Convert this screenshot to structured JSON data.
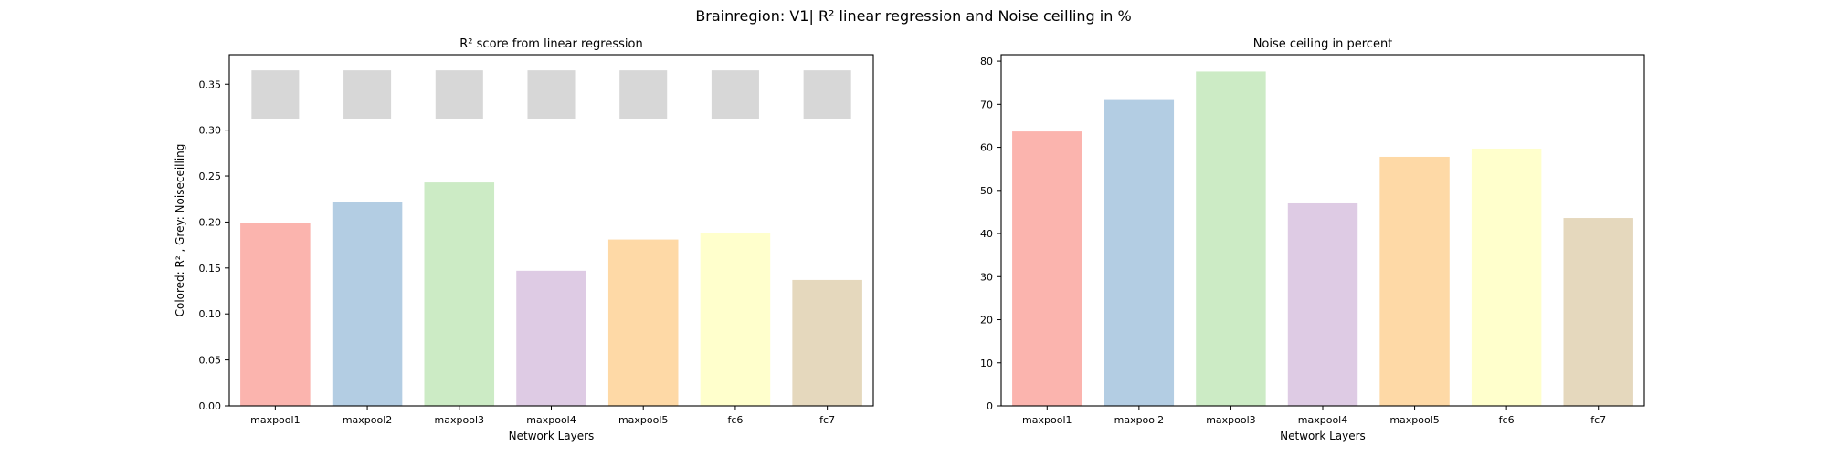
{
  "figure": {
    "title": "Brainregion: V1| R² linear regression and Noise ceilling in %"
  },
  "colors": {
    "bars": [
      "#fbb4ae",
      "#b3cde3",
      "#ccebc5",
      "#decbe4",
      "#fed9a6",
      "#ffffcc",
      "#e5d8bd"
    ],
    "ceiling": "#d7d7d7"
  },
  "chart_data": [
    {
      "type": "bar",
      "title": "R² score from linear regression",
      "xlabel": "Network Layers",
      "ylabel": "Colored: R² , Grey: Noiseceilling",
      "categories": [
        "maxpool1",
        "maxpool2",
        "maxpool3",
        "maxpool4",
        "maxpool5",
        "fc6",
        "fc7"
      ],
      "series": [
        {
          "values": [
            0.199,
            0.222,
            0.243,
            0.147,
            0.181,
            0.188,
            0.137
          ]
        },
        {
          "values": [
            0.365,
            0.365,
            0.365,
            0.365,
            0.365,
            0.365,
            0.365
          ],
          "bottom": 0.312
        }
      ],
      "ylim": [
        0,
        0.382
      ],
      "yticks": [
        0.0,
        0.05,
        0.1,
        0.15,
        0.2,
        0.25,
        0.3,
        0.35
      ],
      "ytick_labels": [
        "0.00",
        "0.05",
        "0.10",
        "0.15",
        "0.20",
        "0.25",
        "0.30",
        "0.35"
      ],
      "grid": false,
      "legend": "none"
    },
    {
      "type": "bar",
      "title": "Noise ceiling in percent",
      "xlabel": "Network Layers",
      "ylabel": "",
      "categories": [
        "maxpool1",
        "maxpool2",
        "maxpool3",
        "maxpool4",
        "maxpool5",
        "fc6",
        "fc7"
      ],
      "series": [
        {
          "values": [
            63.7,
            71.0,
            77.6,
            47.0,
            57.8,
            59.7,
            43.6
          ]
        }
      ],
      "ylim": [
        0,
        81.5
      ],
      "yticks": [
        0,
        10,
        20,
        30,
        40,
        50,
        60,
        70,
        80
      ],
      "ytick_labels": [
        "0",
        "10",
        "20",
        "30",
        "40",
        "50",
        "60",
        "70",
        "80"
      ],
      "grid": false,
      "legend": "none"
    }
  ]
}
